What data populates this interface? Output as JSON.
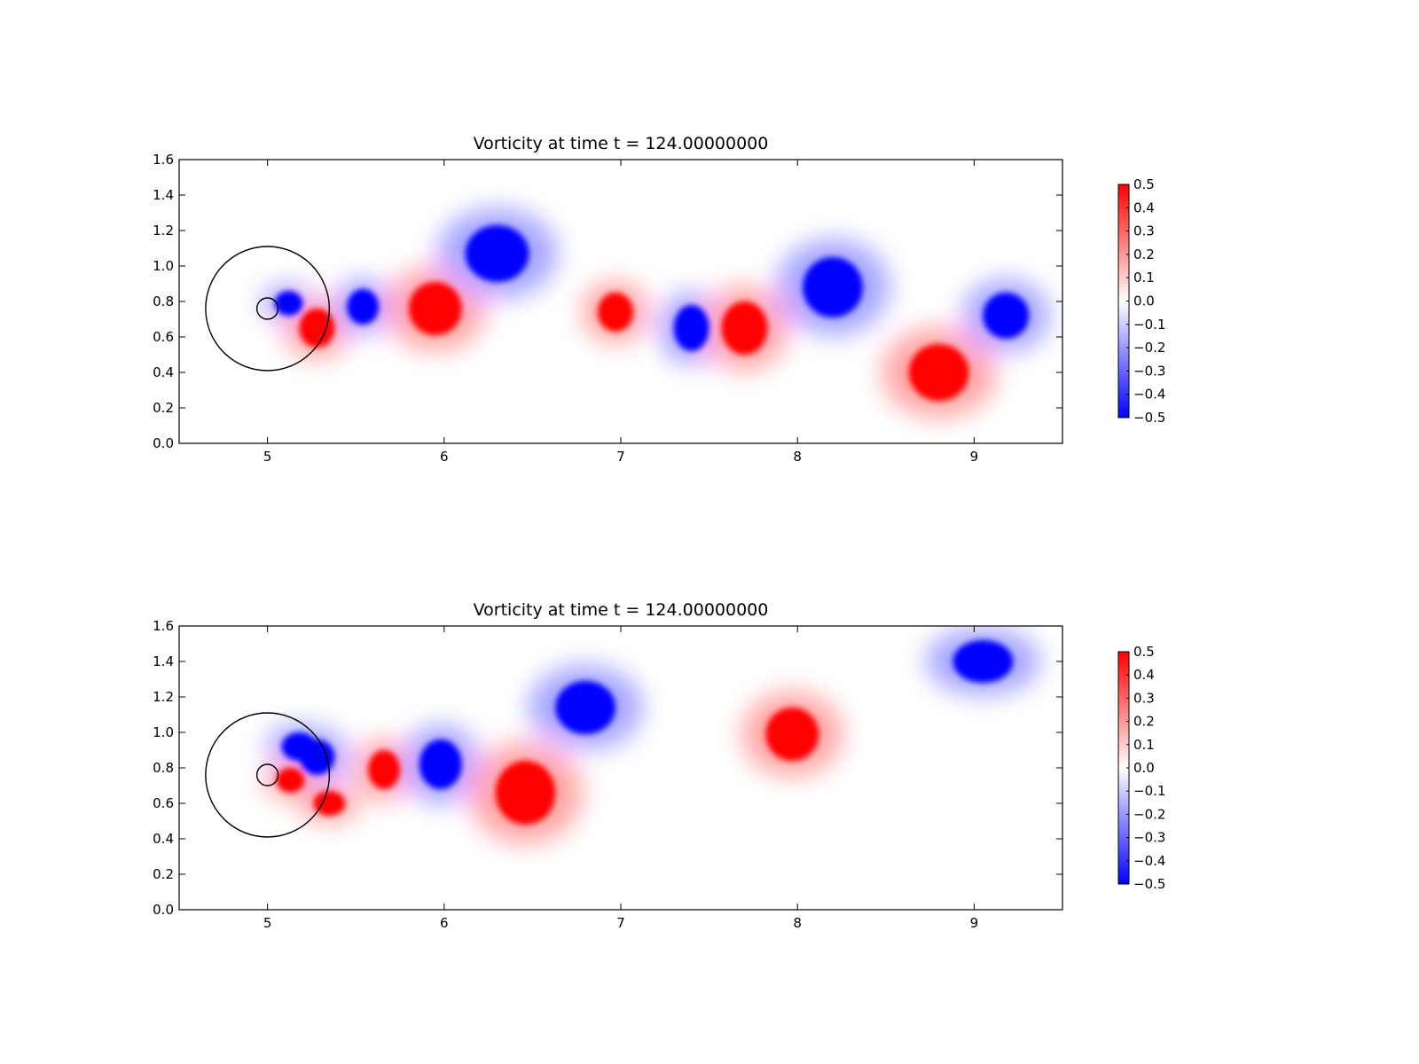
{
  "chart_data": [
    {
      "type": "heatmap",
      "title": "Vorticity at time t =   124.00000000",
      "xlim": [
        4.5,
        9.5
      ],
      "ylim": [
        0.0,
        1.6
      ],
      "xticks": [
        "5",
        "6",
        "7",
        "8",
        "9"
      ],
      "yticks": [
        "0.0",
        "0.2",
        "0.4",
        "0.6",
        "0.8",
        "1.0",
        "1.2",
        "1.4",
        "1.6"
      ],
      "grid": false,
      "colormap": {
        "name": "bwr",
        "low": "#0000ff",
        "mid": "#ffffff",
        "high": "#ff0000"
      },
      "colorbar": {
        "range": [
          -0.5,
          0.5
        ],
        "ticks": [
          "0.5",
          "0.4",
          "0.3",
          "0.2",
          "0.1",
          "0.0",
          "−0.1",
          "−0.2",
          "−0.3",
          "−0.4",
          "−0.5"
        ]
      },
      "circles": [
        {
          "cx": 5.0,
          "cy": 0.76,
          "r": 0.35
        },
        {
          "cx": 5.0,
          "cy": 0.76,
          "r": 0.06
        }
      ],
      "vortices": [
        {
          "x": 5.12,
          "y": 0.79,
          "strength": -0.5,
          "rx": 0.08,
          "ry": 0.07
        },
        {
          "x": 5.28,
          "y": 0.65,
          "strength": 0.5,
          "rx": 0.1,
          "ry": 0.11
        },
        {
          "x": 5.54,
          "y": 0.77,
          "strength": -0.5,
          "rx": 0.09,
          "ry": 0.1
        },
        {
          "x": 5.95,
          "y": 0.76,
          "strength": 0.5,
          "rx": 0.15,
          "ry": 0.15
        },
        {
          "x": 6.3,
          "y": 1.07,
          "strength": -0.5,
          "rx": 0.18,
          "ry": 0.16
        },
        {
          "x": 6.97,
          "y": 0.74,
          "strength": 0.5,
          "rx": 0.1,
          "ry": 0.11
        },
        {
          "x": 7.4,
          "y": 0.65,
          "strength": -0.5,
          "rx": 0.1,
          "ry": 0.13
        },
        {
          "x": 7.7,
          "y": 0.65,
          "strength": 0.5,
          "rx": 0.13,
          "ry": 0.15
        },
        {
          "x": 8.2,
          "y": 0.88,
          "strength": -0.5,
          "rx": 0.17,
          "ry": 0.17
        },
        {
          "x": 8.8,
          "y": 0.4,
          "strength": 0.5,
          "rx": 0.17,
          "ry": 0.16
        },
        {
          "x": 9.18,
          "y": 0.72,
          "strength": -0.5,
          "rx": 0.13,
          "ry": 0.13
        }
      ]
    },
    {
      "type": "heatmap",
      "title": "Vorticity at time t =   124.00000000",
      "xlim": [
        4.5,
        9.5
      ],
      "ylim": [
        0.0,
        1.6
      ],
      "xticks": [
        "5",
        "6",
        "7",
        "8",
        "9"
      ],
      "yticks": [
        "0.0",
        "0.2",
        "0.4",
        "0.6",
        "0.8",
        "1.0",
        "1.2",
        "1.4",
        "1.6"
      ],
      "grid": false,
      "colormap": {
        "name": "bwr",
        "low": "#0000ff",
        "mid": "#ffffff",
        "high": "#ff0000"
      },
      "colorbar": {
        "range": [
          -0.5,
          0.5
        ],
        "ticks": [
          "0.5",
          "0.4",
          "0.3",
          "0.2",
          "0.1",
          "0.0",
          "−0.1",
          "−0.2",
          "−0.3",
          "−0.4",
          "−0.5"
        ]
      },
      "circles": [
        {
          "cx": 5.0,
          "cy": 0.76,
          "r": 0.35
        },
        {
          "cx": 5.0,
          "cy": 0.76,
          "r": 0.06
        }
      ],
      "vortices": [
        {
          "x": 5.18,
          "y": 0.92,
          "strength": -0.5,
          "rx": 0.1,
          "ry": 0.08
        },
        {
          "x": 5.28,
          "y": 0.86,
          "strength": -0.5,
          "rx": 0.1,
          "ry": 0.1
        },
        {
          "x": 5.13,
          "y": 0.73,
          "strength": 0.5,
          "rx": 0.08,
          "ry": 0.07
        },
        {
          "x": 5.35,
          "y": 0.6,
          "strength": 0.5,
          "rx": 0.09,
          "ry": 0.07
        },
        {
          "x": 5.66,
          "y": 0.79,
          "strength": 0.5,
          "rx": 0.09,
          "ry": 0.11
        },
        {
          "x": 5.98,
          "y": 0.82,
          "strength": -0.5,
          "rx": 0.12,
          "ry": 0.14
        },
        {
          "x": 6.46,
          "y": 0.66,
          "strength": 0.5,
          "rx": 0.17,
          "ry": 0.18
        },
        {
          "x": 6.8,
          "y": 1.14,
          "strength": -0.5,
          "rx": 0.17,
          "ry": 0.15
        },
        {
          "x": 7.97,
          "y": 0.99,
          "strength": 0.5,
          "rx": 0.15,
          "ry": 0.15
        },
        {
          "x": 9.05,
          "y": 1.4,
          "strength": -0.5,
          "rx": 0.17,
          "ry": 0.12
        }
      ]
    }
  ]
}
